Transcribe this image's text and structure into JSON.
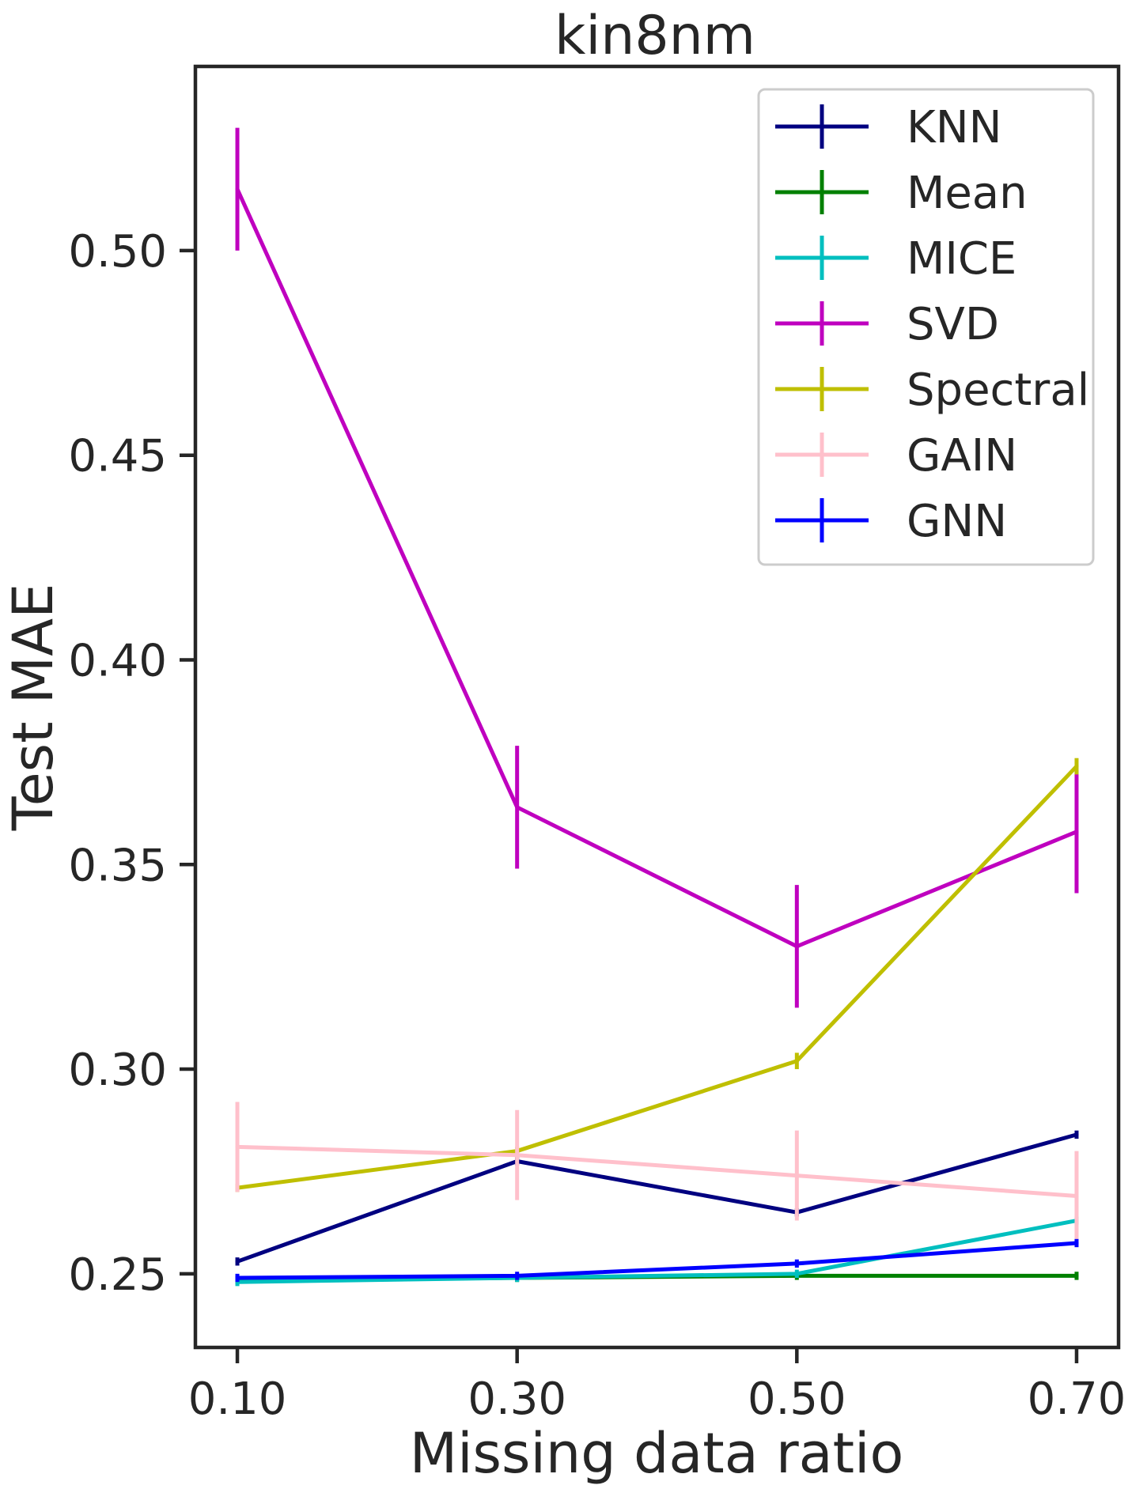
{
  "chart_data": {
    "type": "line",
    "title": "kin8nm",
    "xlabel": "Missing data ratio",
    "ylabel": "Test MAE",
    "x": [
      0.1,
      0.3,
      0.5,
      0.7
    ],
    "x_tick_labels": [
      "0.10",
      "0.30",
      "0.50",
      "0.70"
    ],
    "y_ticks": [
      0.25,
      0.3,
      0.35,
      0.4,
      0.45,
      0.5
    ],
    "y_tick_labels": [
      "0.25",
      "0.30",
      "0.35",
      "0.40",
      "0.45",
      "0.50"
    ],
    "xlim": [
      0.07,
      0.73
    ],
    "ylim": [
      0.232,
      0.545
    ],
    "grid": false,
    "legend_position": "top-right",
    "series": [
      {
        "name": "KNN",
        "color": "#000080",
        "values": [
          0.253,
          0.2775,
          0.265,
          0.284
        ],
        "errors": [
          0.001,
          0.001,
          0.001,
          0.001
        ]
      },
      {
        "name": "Mean",
        "color": "#008000",
        "values": [
          0.2485,
          0.249,
          0.2495,
          0.2495
        ],
        "errors": [
          0.001,
          0.001,
          0.001,
          0.001
        ]
      },
      {
        "name": "MICE",
        "color": "#00bfbf",
        "values": [
          0.248,
          0.249,
          0.25,
          0.263
        ],
        "errors": [
          0.001,
          0.001,
          0.001,
          0.001
        ]
      },
      {
        "name": "SVD",
        "color": "#bf00bf",
        "values": [
          0.515,
          0.364,
          0.33,
          0.358
        ],
        "errors": [
          0.015,
          0.015,
          0.015,
          0.015
        ]
      },
      {
        "name": "Spectral",
        "color": "#bfbf00",
        "values": [
          0.271,
          0.28,
          0.302,
          0.374
        ],
        "errors": [
          0.001,
          0.001,
          0.002,
          0.002
        ]
      },
      {
        "name": "GAIN",
        "color": "#ffc0cb",
        "values": [
          0.281,
          0.279,
          0.274,
          0.269
        ],
        "errors": [
          0.011,
          0.011,
          0.011,
          0.011
        ]
      },
      {
        "name": "GNN",
        "color": "#0000ff",
        "values": [
          0.249,
          0.2495,
          0.2525,
          0.2575
        ],
        "errors": [
          0.001,
          0.001,
          0.001,
          0.001
        ]
      }
    ]
  }
}
